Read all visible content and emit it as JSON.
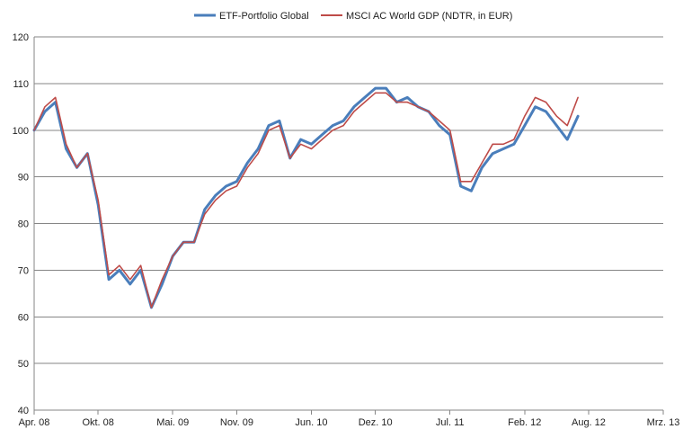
{
  "chart_data": {
    "type": "line",
    "title": "",
    "xlabel": "",
    "ylabel": "",
    "ylim": [
      40,
      120
    ],
    "yticks": [
      40,
      50,
      60,
      70,
      80,
      90,
      100,
      110,
      120
    ],
    "xlim": [
      "2008-04",
      "2013-03"
    ],
    "xticks": [
      {
        "date": "2008-04",
        "label": "Apr. 08"
      },
      {
        "date": "2008-10",
        "label": "Okt. 08"
      },
      {
        "date": "2009-05",
        "label": "Mai. 09"
      },
      {
        "date": "2009-11",
        "label": "Nov. 09"
      },
      {
        "date": "2010-06",
        "label": "Jun. 10"
      },
      {
        "date": "2010-12",
        "label": "Dez. 10"
      },
      {
        "date": "2011-07",
        "label": "Jul. 11"
      },
      {
        "date": "2012-02",
        "label": "Feb. 12"
      },
      {
        "date": "2012-08",
        "label": "Aug. 12"
      },
      {
        "date": "2013-03",
        "label": "Mrz. 13"
      }
    ],
    "grid": "horizontal",
    "legend_position": "top",
    "x": [
      "2008-04",
      "2008-05",
      "2008-06",
      "2008-07",
      "2008-08",
      "2008-09",
      "2008-10",
      "2008-11",
      "2008-12",
      "2009-01",
      "2009-02",
      "2009-03",
      "2009-04",
      "2009-05",
      "2009-06",
      "2009-07",
      "2009-08",
      "2009-09",
      "2009-10",
      "2009-11",
      "2009-12",
      "2010-01",
      "2010-02",
      "2010-03",
      "2010-04",
      "2010-05",
      "2010-06",
      "2010-07",
      "2010-08",
      "2010-09",
      "2010-10",
      "2010-11",
      "2010-12",
      "2011-01",
      "2011-02",
      "2011-03",
      "2011-04",
      "2011-05",
      "2011-06",
      "2011-07",
      "2011-08",
      "2011-09",
      "2011-10",
      "2011-11",
      "2011-12",
      "2012-01",
      "2012-02",
      "2012-03",
      "2012-04",
      "2012-05",
      "2012-06",
      "2012-07"
    ],
    "series": [
      {
        "name": "ETF-Portfolio Global",
        "color": "#4a7ebb",
        "values": [
          100,
          104,
          106,
          96,
          92,
          95,
          84,
          68,
          70,
          67,
          70,
          62,
          67,
          73,
          76,
          76,
          83,
          86,
          88,
          89,
          93,
          96,
          101,
          102,
          94,
          98,
          97,
          99,
          101,
          102,
          105,
          107,
          109,
          109,
          106,
          107,
          105,
          104,
          101,
          99,
          88,
          87,
          92,
          95,
          96,
          97,
          101,
          105,
          104,
          101,
          98,
          103
        ]
      },
      {
        "name": "MSCI AC World GDP (NDTR, in EUR)",
        "color": "#be4b48",
        "values": [
          100,
          105,
          107,
          97,
          92,
          95,
          85,
          69,
          71,
          68,
          71,
          62,
          68,
          73,
          76,
          76,
          82,
          85,
          87,
          88,
          92,
          95,
          100,
          101,
          94,
          97,
          96,
          98,
          100,
          101,
          104,
          106,
          108,
          108,
          106,
          106,
          105,
          104,
          102,
          100,
          89,
          89,
          93,
          97,
          97,
          98,
          103,
          107,
          106,
          103,
          101,
          107
        ]
      }
    ]
  }
}
